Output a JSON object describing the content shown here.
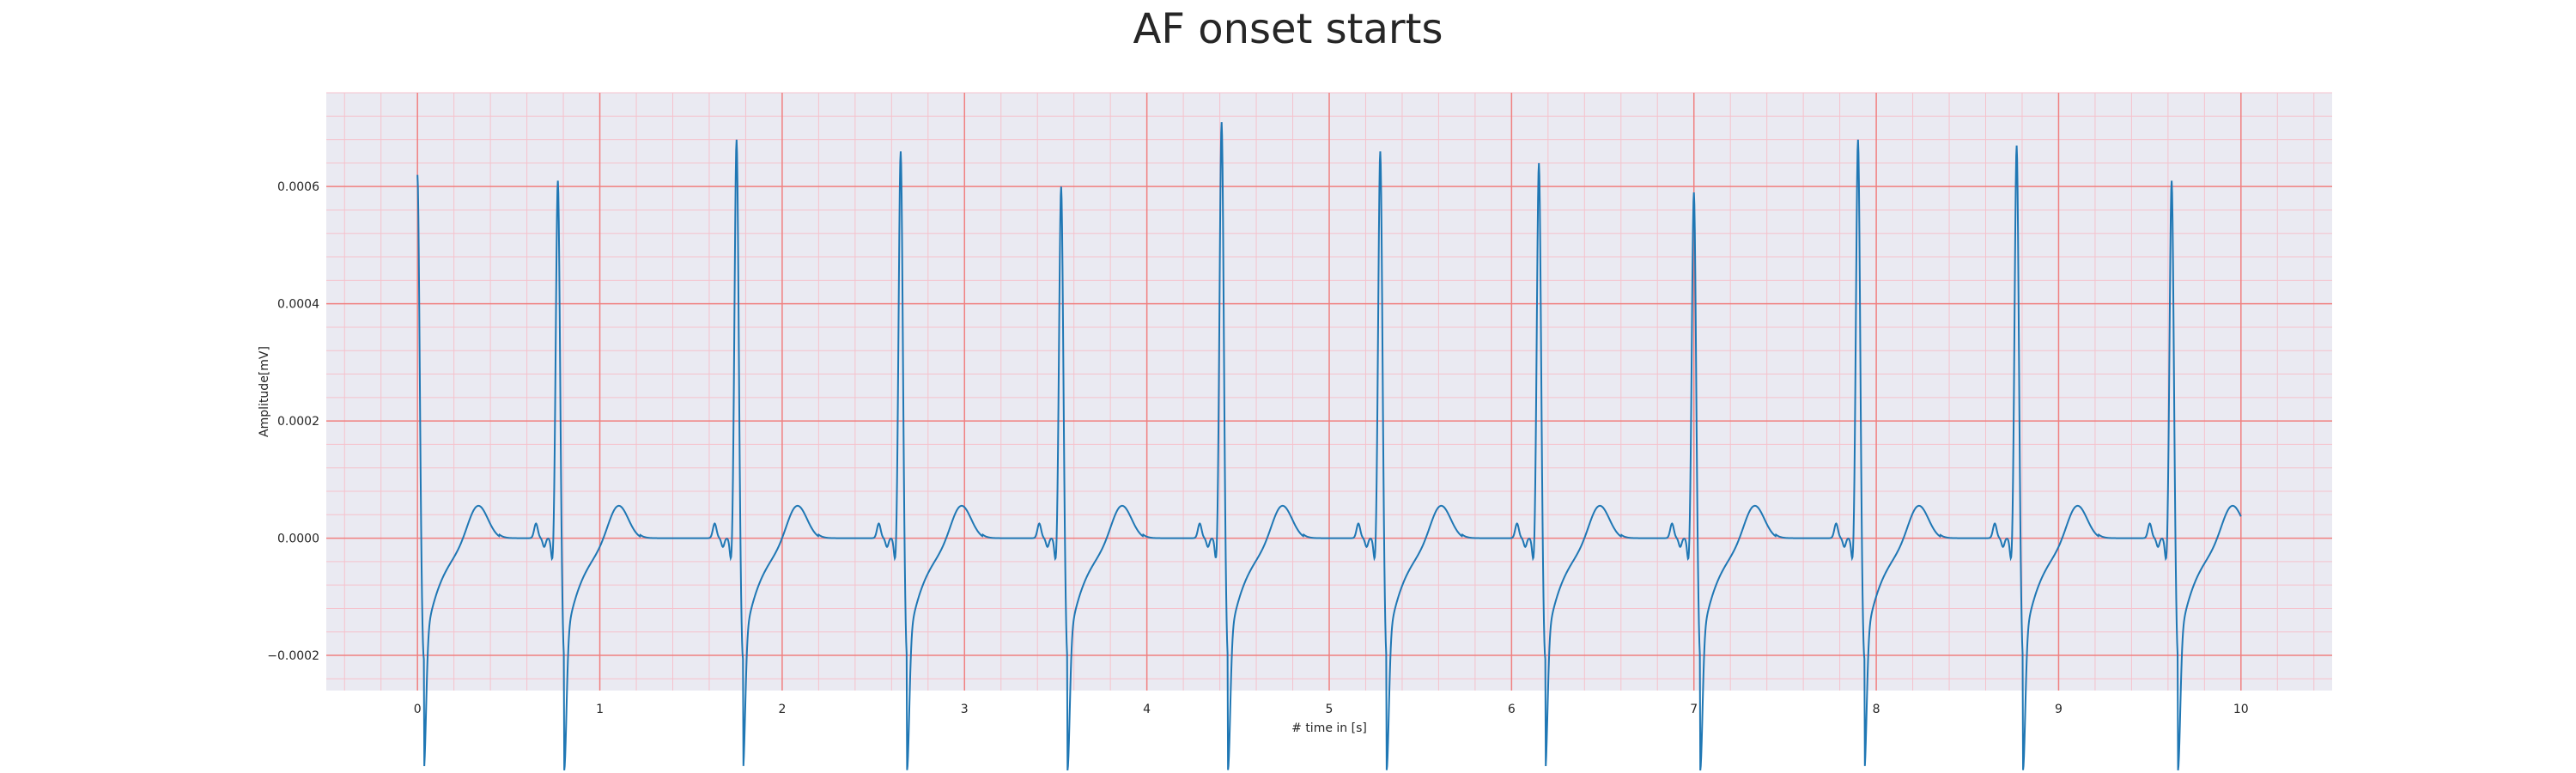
{
  "chart_data": {
    "type": "line",
    "title": "AF onset starts",
    "xlabel": "# time in [s]",
    "ylabel": "Amplitude[mV]",
    "xlim": [
      -0.5,
      10.5
    ],
    "ylim": [
      -0.00026,
      0.00076
    ],
    "xticks": [
      0,
      1,
      2,
      3,
      4,
      5,
      6,
      7,
      8,
      9,
      10
    ],
    "xtick_labels": [
      "0",
      "1",
      "2",
      "3",
      "4",
      "5",
      "6",
      "7",
      "8",
      "9",
      "10"
    ],
    "yticks": [
      -0.0002,
      0,
      0.0002,
      0.0004,
      0.0006
    ],
    "ytick_labels": [
      "−0.0002",
      "0.0000",
      "0.0002",
      "0.0004",
      "0.0006"
    ],
    "minor_x_step": 0.2,
    "minor_y_step": 4e-05,
    "grid": true,
    "colors": {
      "background": "#eaeaf2",
      "major_grid": "#f08080",
      "minor_grid": "#f5c2cc",
      "series": "#1f77b4"
    },
    "series": [
      {
        "beats": [
          {
            "t": 0.0,
            "r": 0.00062
          },
          {
            "t": 0.77,
            "r": 0.00061
          },
          {
            "t": 1.75,
            "r": 0.00068
          },
          {
            "t": 2.65,
            "r": 0.00066
          },
          {
            "t": 3.53,
            "r": 0.0006
          },
          {
            "t": 4.41,
            "r": 0.00071
          },
          {
            "t": 5.28,
            "r": 0.00066
          },
          {
            "t": 6.15,
            "r": 0.00064
          },
          {
            "t": 7.0,
            "r": 0.00059
          },
          {
            "t": 7.9,
            "r": 0.00068
          },
          {
            "t": 8.77,
            "r": 0.00067
          },
          {
            "t": 9.62,
            "r": 0.00061
          }
        ],
        "x_end": 10.0
      }
    ]
  }
}
